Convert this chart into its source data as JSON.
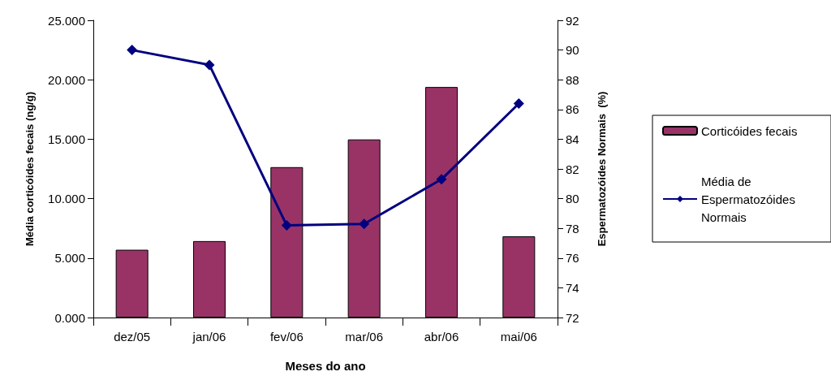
{
  "chart_data": {
    "type": "bar",
    "xlabel": "Meses do ano",
    "ylabel": "Média corticóides fecais (ng/g)",
    "y2label": "Espermatozóides Normais  (%)",
    "categories": [
      "dez/05",
      "jan/06",
      "fev/06",
      "mar/06",
      "abr/06",
      "mai/06"
    ],
    "series": [
      {
        "name": "Corticóides fecais",
        "color": "#993366",
        "values": [
          5.7,
          6.43,
          12.65,
          14.98,
          19.39,
          6.83
        ]
      },
      {
        "name": "Média de Espermatozóides Normais",
        "type": "line",
        "axis": "y2",
        "color": "#000080",
        "marker": "diamond",
        "values": [
          90.0,
          89.0,
          78.2,
          78.3,
          81.3,
          86.4
        ]
      }
    ],
    "ylim": [
      0,
      25
    ],
    "yticks": [
      {
        "value": 0,
        "label": "0.000"
      },
      {
        "value": 5,
        "label": "5.000"
      },
      {
        "value": 10,
        "label": "10.000"
      },
      {
        "value": 15,
        "label": "15.000"
      },
      {
        "value": 20,
        "label": "20.000"
      },
      {
        "value": 25,
        "label": "25.000"
      }
    ],
    "y2lim": [
      72,
      92
    ],
    "y2ticks": [
      72,
      74,
      76,
      78,
      80,
      82,
      84,
      86,
      88,
      90,
      92
    ],
    "grid": false,
    "legend": "right"
  }
}
